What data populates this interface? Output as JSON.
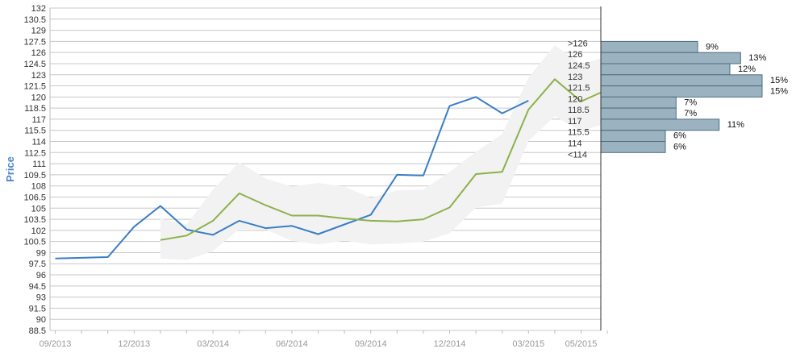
{
  "chart_data": {
    "type": "line",
    "ylabel": "Price",
    "ylim": [
      88.5,
      132
    ],
    "y_ticks": [
      "88.5",
      "90",
      "91.5",
      "93",
      "94.5",
      "96",
      "97.5",
      "99",
      "100.5",
      "102",
      "103.5",
      "105",
      "106.5",
      "108",
      "109.5",
      "111",
      "112.5",
      "114",
      "115.5",
      "117",
      "118.5",
      "120",
      "121.5",
      "123",
      "124.5",
      "126",
      "127.5",
      "129",
      "130.5",
      "132"
    ],
    "x_tick_labels": [
      "09/2013",
      "12/2013",
      "03/2014",
      "06/2014",
      "09/2014",
      "12/2014",
      "03/2015",
      "05/2015"
    ],
    "series": [
      {
        "color": "#3a7ec6",
        "x": [
          "2013-09",
          "2013-10",
          "2013-11",
          "2013-12",
          "2014-01",
          "2014-02",
          "2014-03",
          "2014-04",
          "2014-05",
          "2014-06",
          "2014-07",
          "2014-08",
          "2014-09",
          "2014-10",
          "2014-11",
          "2014-12",
          "2015-01",
          "2015-02",
          "2015-03"
        ],
        "values": [
          98.2,
          98.3,
          98.4,
          102.5,
          105.3,
          102.1,
          101.4,
          103.3,
          102.3,
          102.6,
          101.5,
          102.8,
          104.1,
          109.5,
          109.4,
          118.8,
          120.0,
          117.8,
          119.5
        ]
      },
      {
        "color": "#8cb14c",
        "x": [
          "2014-01",
          "2014-02",
          "2014-03",
          "2014-04",
          "2014-05",
          "2014-06",
          "2014-07",
          "2014-08",
          "2014-09",
          "2014-10",
          "2014-11",
          "2014-12",
          "2015-01",
          "2015-02",
          "2015-03",
          "2015-04",
          "2015-05",
          "2015-06"
        ],
        "values": [
          100.7,
          101.3,
          103.3,
          107.0,
          105.4,
          104.0,
          104.0,
          103.6,
          103.3,
          103.2,
          103.5,
          105.1,
          109.6,
          109.9,
          118.3,
          122.4,
          119.4,
          121.0
        ]
      }
    ],
    "band": {
      "color": "#f2f2f2",
      "x": [
        "2014-01",
        "2014-02",
        "2014-03",
        "2014-04",
        "2014-05",
        "2014-06",
        "2014-07",
        "2014-08",
        "2014-09",
        "2014-10",
        "2014-11",
        "2014-12",
        "2015-01",
        "2015-02",
        "2015-03",
        "2015-04",
        "2015-05",
        "2015-06"
      ],
      "upper": [
        103.6,
        102.8,
        107.5,
        111.2,
        109.0,
        107.9,
        108.4,
        107.9,
        106.4,
        107.4,
        107.5,
        109.9,
        112.6,
        115.0,
        122.6,
        127.0,
        124.4,
        125.5
      ],
      "lower": [
        98.2,
        98.0,
        99.2,
        102.2,
        102.1,
        100.6,
        100.1,
        100.6,
        100.1,
        100.2,
        100.5,
        101.6,
        105.1,
        105.6,
        114.1,
        117.4,
        115.4,
        116.5
      ]
    },
    "histogram": {
      "color": "#9bb3c0",
      "bins": [
        {
          "label": ">126",
          "pct": "9%",
          "value": 9
        },
        {
          "label": "126",
          "pct": "13%",
          "value": 13
        },
        {
          "label": "124.5",
          "pct": "12%",
          "value": 12
        },
        {
          "label": "123",
          "pct": "15%",
          "value": 15
        },
        {
          "label": "121.5",
          "pct": "15%",
          "value": 15
        },
        {
          "label": "120",
          "pct": "7%",
          "value": 7
        },
        {
          "label": "118.5",
          "pct": "7%",
          "value": 7
        },
        {
          "label": "117",
          "pct": "11%",
          "value": 11
        },
        {
          "label": "115.5",
          "pct": "6%",
          "value": 6
        },
        {
          "label": "114",
          "pct": "6%",
          "value": 6
        },
        {
          "label": "<114",
          "pct": "",
          "value": 0
        }
      ]
    },
    "grid": true
  }
}
